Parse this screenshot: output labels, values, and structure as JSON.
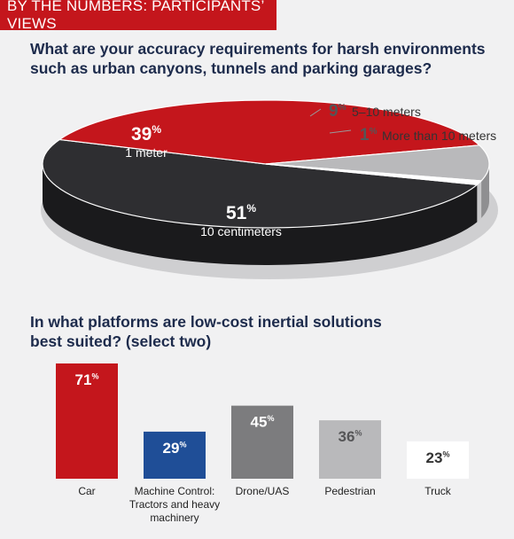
{
  "banner": "BY THE NUMBERS: PARTICIPANTS’ VIEWS",
  "colors": {
    "red": "#c4161c",
    "blue": "#1f4e97",
    "dark": "#2e2e31",
    "gray": "#7c7c7e",
    "lightgray": "#b9b9bb",
    "white": "#ffffff",
    "navy": "#1d2b4c"
  },
  "chart_data": [
    {
      "type": "pie",
      "title": "What are your accuracy requirements for harsh environments such as urban canyons, tunnels and parking garages?",
      "slices": [
        {
          "label": "10 centimeters",
          "value": 51,
          "display": "51%"
        },
        {
          "label": "1 meter",
          "value": 39,
          "display": "39%"
        },
        {
          "label": "5–10 meters",
          "value": 9,
          "display": "9%"
        },
        {
          "label": "More than 10 meters",
          "value": 1,
          "display": "1%"
        }
      ]
    },
    {
      "type": "bar",
      "title": "In what platforms are low-cost inertial solutions best suited? (select two)",
      "categories": [
        "Car",
        "Machine Control: Tractors and heavy machinery",
        "Drone/UAS",
        "Pedestrian",
        "Truck"
      ],
      "values": [
        71,
        29,
        45,
        36,
        23
      ],
      "displays": [
        "71%",
        "29%",
        "45%",
        "36%",
        "23%"
      ],
      "ylim": [
        0,
        71
      ]
    }
  ]
}
